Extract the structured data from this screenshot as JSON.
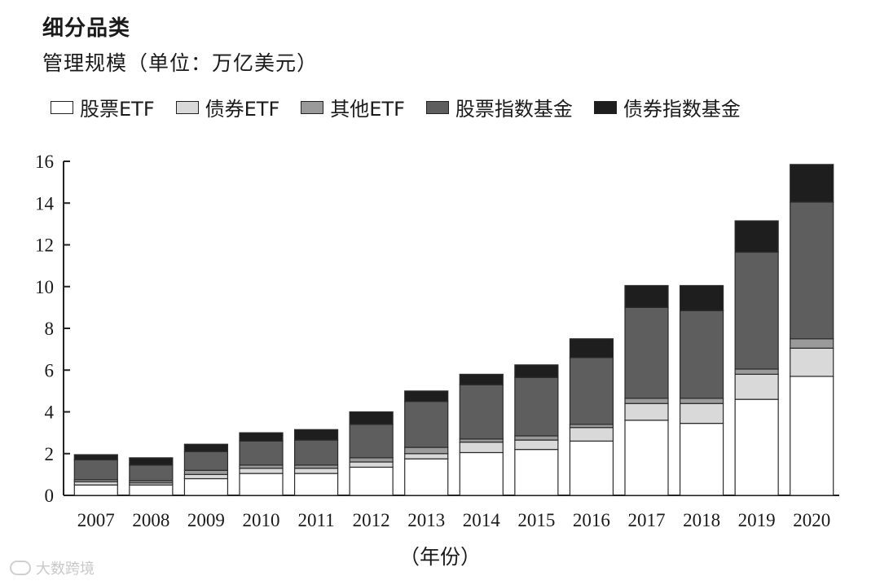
{
  "chart_data": {
    "type": "bar",
    "stacked": true,
    "title": "细分品类",
    "ylabel": "管理规模（单位：万亿美元）",
    "xlabel": "（年份）",
    "ylim": [
      0,
      16
    ],
    "yticks": [
      0,
      2,
      4,
      6,
      8,
      10,
      12,
      14,
      16
    ],
    "categories": [
      "2007",
      "2008",
      "2009",
      "2010",
      "2011",
      "2012",
      "2013",
      "2014",
      "2015",
      "2016",
      "2017",
      "2018",
      "2019",
      "2020"
    ],
    "series": [
      {
        "name": "股票ETF",
        "color": "#ffffff",
        "values": [
          0.5,
          0.5,
          0.8,
          1.05,
          1.05,
          1.35,
          1.75,
          2.05,
          2.2,
          2.6,
          3.6,
          3.45,
          4.6,
          5.7
        ]
      },
      {
        "name": "债券ETF",
        "color": "#d9d9d9",
        "values": [
          0.15,
          0.1,
          0.2,
          0.25,
          0.25,
          0.25,
          0.25,
          0.5,
          0.45,
          0.65,
          0.8,
          0.95,
          1.2,
          1.35
        ]
      },
      {
        "name": "其他ETF",
        "color": "#9a9a9a",
        "values": [
          0.1,
          0.1,
          0.2,
          0.15,
          0.15,
          0.2,
          0.3,
          0.15,
          0.2,
          0.15,
          0.25,
          0.25,
          0.25,
          0.45
        ]
      },
      {
        "name": "股票指数基金",
        "color": "#5e5e5e",
        "values": [
          0.95,
          0.75,
          0.9,
          1.15,
          1.2,
          1.6,
          2.2,
          2.6,
          2.8,
          3.2,
          4.35,
          4.2,
          5.6,
          6.55
        ]
      },
      {
        "name": "债券指数基金",
        "color": "#1e1e1e",
        "values": [
          0.25,
          0.35,
          0.35,
          0.4,
          0.5,
          0.6,
          0.5,
          0.5,
          0.6,
          0.9,
          1.05,
          1.2,
          1.5,
          1.8
        ]
      }
    ]
  },
  "watermark": "大数跨境"
}
